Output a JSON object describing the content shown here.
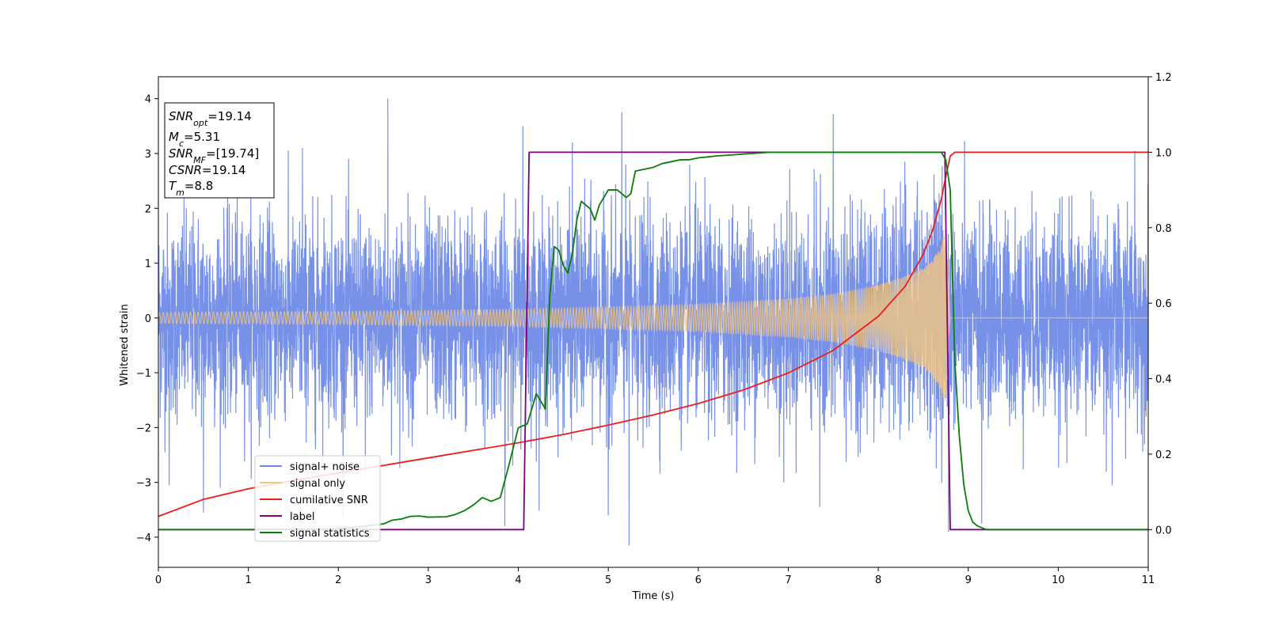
{
  "chart_data": {
    "type": "line",
    "title": "",
    "xlabel": "Time (s)",
    "ylabel": "Whitened strain",
    "ylabel_right": "",
    "xlim": [
      0,
      11
    ],
    "ylim": [
      -4.55,
      4.4
    ],
    "ylim_right": [
      -0.1,
      1.2
    ],
    "x_ticks": [
      0,
      1,
      2,
      3,
      4,
      5,
      6,
      7,
      8,
      9,
      10,
      11
    ],
    "y_ticks": [
      -4,
      -3,
      -2,
      -1,
      0,
      1,
      2,
      3,
      4
    ],
    "y_ticks_right": [
      0.0,
      0.2,
      0.4,
      0.6,
      0.8,
      1.0,
      1.2
    ],
    "grid": false,
    "legend_position": "lower-left",
    "series": [
      {
        "name": "signal+ noise",
        "axis": "left",
        "color": "#6b88e6",
        "noise_std": 0.9,
        "spikes": [
          [
            0.12,
            -3.05
          ],
          [
            0.5,
            -3.55
          ],
          [
            1.6,
            3.1
          ],
          [
            2.3,
            -2.8
          ],
          [
            2.55,
            4.0
          ],
          [
            3.85,
            -3.8
          ],
          [
            4.05,
            3.5
          ],
          [
            4.6,
            3.2
          ],
          [
            5.0,
            -3.6
          ],
          [
            5.15,
            3.75
          ],
          [
            5.23,
            -4.15
          ],
          [
            6.95,
            -3.0
          ],
          [
            7.35,
            -3.45
          ],
          [
            7.5,
            3.72
          ],
          [
            8.78,
            -3.9
          ],
          [
            9.15,
            -3.75
          ],
          [
            10.6,
            -3.05
          ],
          [
            10.85,
            3.05
          ]
        ]
      },
      {
        "name": "signal only",
        "axis": "left",
        "color": "#f5c77e",
        "amplitude_envelope": [
          [
            0,
            0.1
          ],
          [
            2,
            0.12
          ],
          [
            4,
            0.16
          ],
          [
            5,
            0.2
          ],
          [
            6,
            0.25
          ],
          [
            7,
            0.35
          ],
          [
            7.5,
            0.44
          ],
          [
            8,
            0.6
          ],
          [
            8.3,
            0.76
          ],
          [
            8.5,
            0.92
          ],
          [
            8.6,
            1.05
          ],
          [
            8.7,
            1.32
          ],
          [
            8.75,
            1.65
          ],
          [
            8.8,
            0
          ]
        ],
        "merger_time": 8.8
      },
      {
        "name": "cumilative SNR",
        "axis": "right",
        "color": "#ee1c1c",
        "x": [
          0,
          0.5,
          1,
          1.5,
          2,
          2.5,
          3,
          3.5,
          4,
          4.5,
          5,
          5.5,
          6,
          6.5,
          7,
          7.5,
          8,
          8.3,
          8.5,
          8.6,
          8.7,
          8.75,
          8.8,
          8.85,
          11
        ],
        "y": [
          0.035,
          0.08,
          0.108,
          0.13,
          0.15,
          0.17,
          0.19,
          0.21,
          0.23,
          0.252,
          0.277,
          0.304,
          0.334,
          0.37,
          0.415,
          0.475,
          0.565,
          0.645,
          0.73,
          0.79,
          0.875,
          0.935,
          0.99,
          1.0,
          1.0
        ]
      },
      {
        "name": "label",
        "axis": "right",
        "color": "#800080",
        "x": [
          0,
          4.06,
          4.12,
          8.74,
          8.8,
          11
        ],
        "y": [
          0,
          0,
          1,
          1,
          0,
          0
        ]
      },
      {
        "name": "signal statistics",
        "axis": "right",
        "color": "#0a7d0a",
        "x": [
          0,
          1,
          2,
          2.5,
          2.6,
          2.7,
          2.8,
          2.9,
          3.0,
          3.2,
          3.3,
          3.4,
          3.5,
          3.55,
          3.6,
          3.65,
          3.7,
          3.8,
          3.9,
          4.0,
          4.1,
          4.2,
          4.3,
          4.35,
          4.4,
          4.45,
          4.5,
          4.55,
          4.6,
          4.65,
          4.7,
          4.8,
          4.85,
          4.9,
          4.95,
          5.0,
          5.1,
          5.15,
          5.2,
          5.25,
          5.3,
          5.4,
          5.5,
          5.6,
          5.7,
          5.8,
          5.9,
          6.0,
          6.2,
          6.5,
          6.8,
          7.0,
          8.0,
          8.7,
          8.75,
          8.8,
          8.85,
          8.9,
          8.95,
          9.0,
          9.05,
          9.1,
          9.2,
          11
        ],
        "y": [
          0,
          0,
          0.002,
          0.015,
          0.025,
          0.028,
          0.035,
          0.036,
          0.033,
          0.034,
          0.04,
          0.05,
          0.065,
          0.075,
          0.085,
          0.08,
          0.075,
          0.085,
          0.175,
          0.27,
          0.28,
          0.36,
          0.32,
          0.62,
          0.75,
          0.74,
          0.7,
          0.68,
          0.73,
          0.82,
          0.87,
          0.85,
          0.82,
          0.86,
          0.88,
          0.9,
          0.9,
          0.89,
          0.88,
          0.89,
          0.95,
          0.955,
          0.96,
          0.97,
          0.975,
          0.98,
          0.98,
          0.985,
          0.99,
          0.995,
          1.0,
          1.0,
          1.0,
          1.0,
          0.98,
          0.9,
          0.45,
          0.25,
          0.12,
          0.05,
          0.02,
          0.01,
          0,
          0
        ]
      }
    ],
    "annotation_box": {
      "lines": [
        {
          "main": "SNR",
          "sub": "opt",
          "value": "=19.14"
        },
        {
          "main": "M",
          "sub": "c",
          "value": "=5.31"
        },
        {
          "main": "SNR",
          "sub": "MF",
          "value": "=[19.74]"
        },
        {
          "main": "CSNR",
          "sub": "",
          "value": "=19.14"
        },
        {
          "main": "T",
          "sub": "m",
          "value": "=8.8"
        }
      ]
    }
  }
}
